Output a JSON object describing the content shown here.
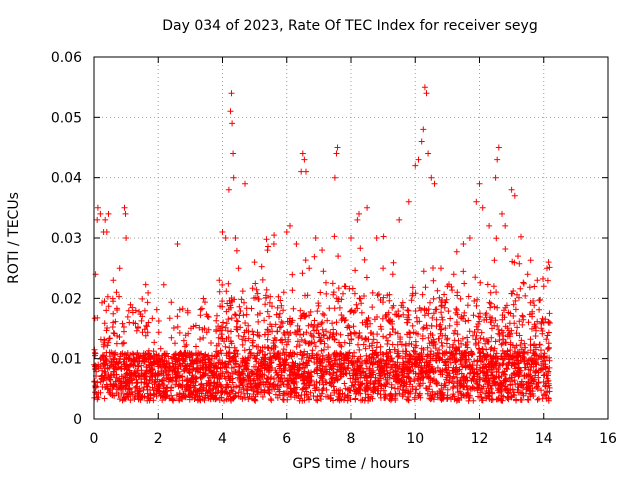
{
  "chart_data": {
    "type": "scatter",
    "title": "Day 034 of 2023, Rate Of TEC Index for receiver seyg",
    "xlabel": "GPS time / hours",
    "ylabel": "ROTI / TECUs",
    "xlim": [
      0,
      16
    ],
    "ylim": [
      0,
      0.06
    ],
    "xticks": [
      0,
      2,
      4,
      6,
      8,
      10,
      12,
      14,
      16
    ],
    "yticks": [
      0,
      0.01,
      0.02,
      0.03,
      0.04,
      0.05,
      0.06
    ],
    "xtick_labels": [
      "0",
      "2",
      "4",
      "6",
      "8",
      "10",
      "12",
      "14",
      "16"
    ],
    "ytick_labels": [
      "0",
      "0.01",
      "0.02",
      "0.03",
      "0.04",
      "0.05",
      "0.06"
    ],
    "grid": true,
    "marker": "+",
    "color": "#ff0000",
    "data_range_x": [
      0,
      14.2
    ],
    "points": [
      [
        0.05,
        0.024
      ],
      [
        0.1,
        0.033
      ],
      [
        0.12,
        0.035
      ],
      [
        0.2,
        0.034
      ],
      [
        0.3,
        0.031
      ],
      [
        0.35,
        0.033
      ],
      [
        0.4,
        0.031
      ],
      [
        0.45,
        0.034
      ],
      [
        0.6,
        0.023
      ],
      [
        0.7,
        0.021
      ],
      [
        0.8,
        0.025
      ],
      [
        0.95,
        0.035
      ],
      [
        0.98,
        0.034
      ],
      [
        1.0,
        0.03
      ],
      [
        1.1,
        0.016
      ],
      [
        1.3,
        0.018
      ],
      [
        1.5,
        0.017
      ],
      [
        1.7,
        0.016
      ],
      [
        2.6,
        0.029
      ],
      [
        2.8,
        0.013
      ],
      [
        3.9,
        0.023
      ],
      [
        4.0,
        0.031
      ],
      [
        4.1,
        0.03
      ],
      [
        4.2,
        0.038
      ],
      [
        4.25,
        0.051
      ],
      [
        4.28,
        0.054
      ],
      [
        4.3,
        0.049
      ],
      [
        4.33,
        0.044
      ],
      [
        4.35,
        0.04
      ],
      [
        4.4,
        0.03
      ],
      [
        4.5,
        0.025
      ],
      [
        4.7,
        0.039
      ],
      [
        5.0,
        0.026
      ],
      [
        5.4,
        0.028
      ],
      [
        5.6,
        0.029
      ],
      [
        6.0,
        0.031
      ],
      [
        6.1,
        0.032
      ],
      [
        6.3,
        0.029
      ],
      [
        6.45,
        0.041
      ],
      [
        6.5,
        0.044
      ],
      [
        6.55,
        0.043
      ],
      [
        6.6,
        0.041
      ],
      [
        6.7,
        0.025
      ],
      [
        6.9,
        0.03
      ],
      [
        7.1,
        0.028
      ],
      [
        7.5,
        0.04
      ],
      [
        7.55,
        0.044
      ],
      [
        7.58,
        0.045
      ],
      [
        7.6,
        0.027
      ],
      [
        7.8,
        0.022
      ],
      [
        8.0,
        0.03
      ],
      [
        8.2,
        0.033
      ],
      [
        8.25,
        0.034
      ],
      [
        8.5,
        0.035
      ],
      [
        8.8,
        0.03
      ],
      [
        9.0,
        0.025
      ],
      [
        9.3,
        0.024
      ],
      [
        9.5,
        0.033
      ],
      [
        9.8,
        0.036
      ],
      [
        10.0,
        0.042
      ],
      [
        10.1,
        0.043
      ],
      [
        10.2,
        0.046
      ],
      [
        10.25,
        0.048
      ],
      [
        10.3,
        0.055
      ],
      [
        10.35,
        0.054
      ],
      [
        10.4,
        0.044
      ],
      [
        10.5,
        0.04
      ],
      [
        10.6,
        0.039
      ],
      [
        10.8,
        0.025
      ],
      [
        11.0,
        0.022
      ],
      [
        11.2,
        0.024
      ],
      [
        11.5,
        0.029
      ],
      [
        11.7,
        0.03
      ],
      [
        11.9,
        0.036
      ],
      [
        12.0,
        0.039
      ],
      [
        12.1,
        0.035
      ],
      [
        12.3,
        0.032
      ],
      [
        12.5,
        0.04
      ],
      [
        12.55,
        0.043
      ],
      [
        12.6,
        0.045
      ],
      [
        12.7,
        0.034
      ],
      [
        12.8,
        0.032
      ],
      [
        13.0,
        0.038
      ],
      [
        13.1,
        0.037
      ],
      [
        13.2,
        0.027
      ],
      [
        13.5,
        0.024
      ],
      [
        13.8,
        0.023
      ],
      [
        14.0,
        0.022
      ],
      [
        14.1,
        0.025
      ],
      [
        14.15,
        0.026
      ]
    ]
  }
}
